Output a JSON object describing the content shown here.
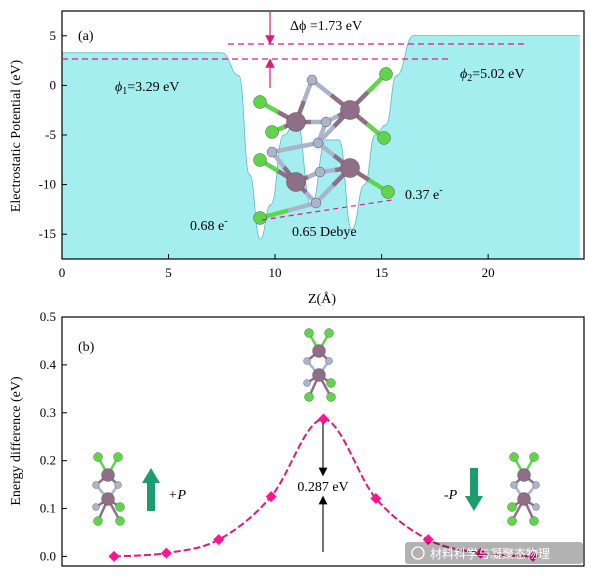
{
  "chart_data": [
    {
      "type": "area",
      "panel_label": "(a)",
      "xlabel": "Z(Å)",
      "ylabel": "Electrostatic Potential (eV)",
      "xlim": [
        0,
        24.5
      ],
      "ylim": [
        -17.5,
        7.5
      ],
      "x_ticks": [
        0,
        5,
        10,
        15,
        20
      ],
      "y_ticks": [
        5,
        0,
        -5,
        -10,
        -15
      ],
      "fill_color": "#a4eef0",
      "line_color": "#5ab8c8",
      "x": [
        0,
        7.5,
        8.3,
        8.8,
        9.3,
        9.8,
        10.4,
        11.0,
        11.7,
        12.4,
        13.0,
        13.6,
        14.2,
        14.7,
        15.2,
        15.7,
        16.5,
        24.3
      ],
      "y": [
        3.29,
        3.29,
        1.0,
        -9.0,
        -15.5,
        -12.0,
        -5.0,
        -3.5,
        -12.0,
        -5.5,
        -5.5,
        -14.5,
        -10.0,
        -5.0,
        -4.0,
        1.0,
        5.02,
        5.02
      ],
      "annotations": {
        "delta_phi": "Δϕ =1.73 eV",
        "phi1_sym": "ϕ",
        "phi1_sub": "1",
        "phi1_val": "=3.29 eV",
        "phi2_sym": "ϕ",
        "phi2_sub": "2",
        "phi2_val": "=5.02 eV",
        "charge_left": "0.68 e",
        "charge_right": "0.37 e",
        "charge_sign": "-",
        "dipole": "0.65 Debye"
      },
      "dash_color": "#e0197d",
      "molecule_colors": {
        "heavy": "#8e6f85",
        "light": "#aab4cc",
        "halogen": "#5fd64a"
      }
    },
    {
      "type": "line",
      "panel_label": "(b)",
      "ylabel": "Energy difference (eV)",
      "ylim": [
        -0.02,
        0.5
      ],
      "y_ticks": [
        0.0,
        0.1,
        0.2,
        0.3,
        0.4,
        0.5
      ],
      "line_color": "#e0197d",
      "marker_color": "#ff1493",
      "points": [
        [
          0,
          0.0
        ],
        [
          1,
          0.007
        ],
        [
          2,
          0.035
        ],
        [
          3,
          0.125
        ],
        [
          4,
          0.287
        ],
        [
          5,
          0.121
        ],
        [
          6,
          0.035
        ],
        [
          7,
          0.007
        ],
        [
          8,
          0.0
        ]
      ],
      "barrier_label": "0.287 eV",
      "plus_p": "+P",
      "minus_p": "-P",
      "arrow_color": "#1a9e70"
    }
  ],
  "watermark": "材料科学与凝聚态物理"
}
